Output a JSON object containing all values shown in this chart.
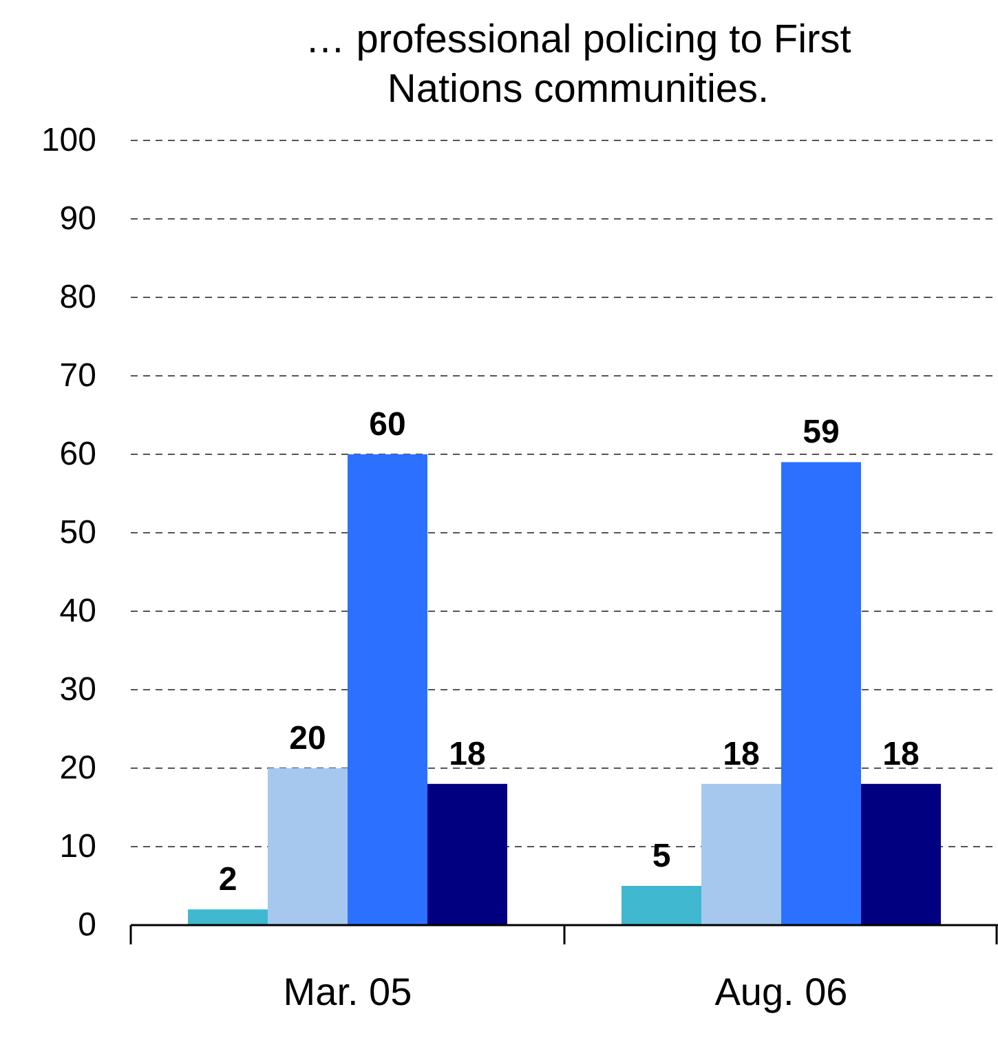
{
  "chart_data": {
    "type": "bar",
    "title": "… professional policing to First Nations communities.",
    "categories": [
      "Mar. 05",
      "Aug. 06"
    ],
    "series": [
      {
        "color": "#40b8d0",
        "values": [
          2,
          5
        ]
      },
      {
        "color": "#a6c8ee",
        "values": [
          20,
          18
        ]
      },
      {
        "color": "#2c70ff",
        "values": [
          60,
          59
        ]
      },
      {
        "color": "#000080",
        "values": [
          18,
          18
        ]
      }
    ],
    "ylim": [
      0,
      100
    ],
    "yticks": [
      0,
      10,
      20,
      30,
      40,
      50,
      60,
      70,
      80,
      90,
      100
    ],
    "grid": "y",
    "data_labels": true
  }
}
